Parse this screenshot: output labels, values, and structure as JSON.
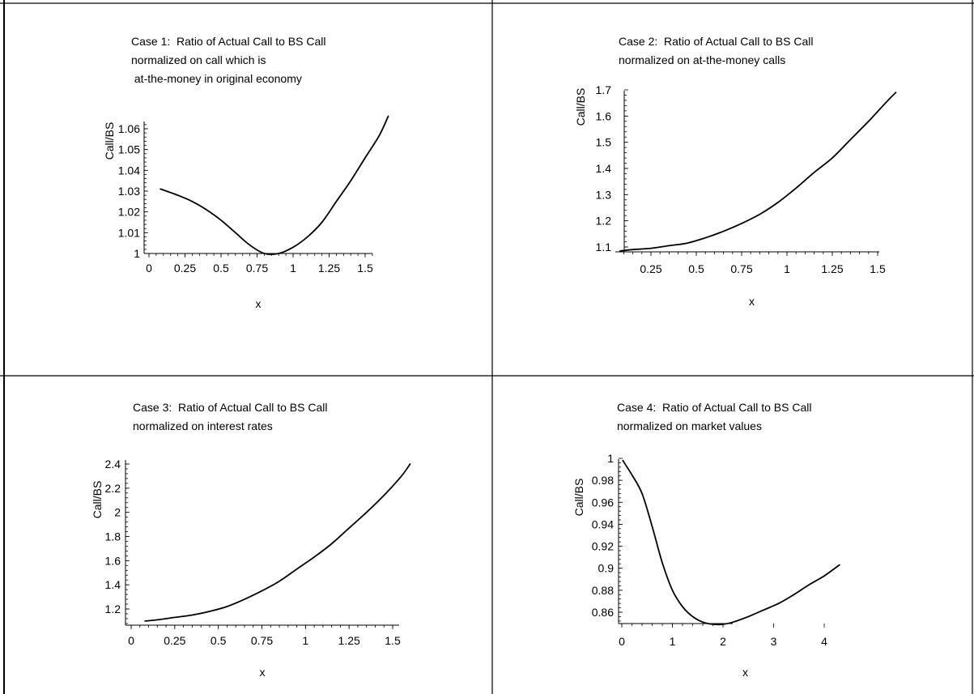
{
  "chart_data": [
    {
      "type": "line",
      "title_lines": [
        "Case 1:  Ratio of Actual Call to BS Call",
        "normalized on call which is",
        " at-the-money in original economy"
      ],
      "xlabel": "x",
      "ylabel": "Call/BS",
      "xlim": [
        0,
        1.72
      ],
      "ylim": [
        0.999,
        1.068
      ],
      "xticks": [
        0,
        0.25,
        0.5,
        0.75,
        1,
        1.25,
        1.5
      ],
      "xtick_labels": [
        "0",
        "0.25",
        "0.5",
        "0.75",
        "1",
        "1.25",
        "1.5"
      ],
      "yticks": [
        1,
        1.01,
        1.02,
        1.03,
        1.04,
        1.05,
        1.06
      ],
      "ytick_labels": [
        "1",
        "1.01",
        "1.02",
        "1.03",
        "1.04",
        "1.05",
        "1.06"
      ],
      "series": [
        {
          "x": [
            0.08,
            0.2,
            0.3,
            0.4,
            0.5,
            0.6,
            0.7,
            0.8,
            0.9,
            1.0,
            1.1,
            1.2,
            1.3,
            1.4,
            1.5,
            1.6,
            1.66
          ],
          "y": [
            1.031,
            1.028,
            1.025,
            1.021,
            1.016,
            1.01,
            1.004,
            1.0,
            1.0,
            1.003,
            1.008,
            1.015,
            1.025,
            1.035,
            1.046,
            1.057,
            1.066
          ]
        }
      ]
    },
    {
      "type": "line",
      "title_lines": [
        "Case 2:  Ratio of Actual Call to BS Call",
        "normalized on at-the-money calls"
      ],
      "xlabel": "x",
      "ylabel": "Call/BS",
      "xlim": [
        0,
        1.66
      ],
      "ylim": [
        1.075,
        1.72
      ],
      "xticks": [
        0.25,
        0.5,
        0.75,
        1,
        1.25,
        1.5
      ],
      "xtick_labels": [
        "0.25",
        "0.5",
        "0.75",
        "1",
        "1.25",
        "1.5"
      ],
      "yticks": [
        1.1,
        1.2,
        1.3,
        1.4,
        1.5,
        1.6,
        1.7
      ],
      "ytick_labels": [
        "1.1",
        "1.2",
        "1.3",
        "1.4",
        "1.5",
        "1.6",
        "1.7"
      ],
      "series": [
        {
          "x": [
            0.08,
            0.15,
            0.25,
            0.35,
            0.45,
            0.55,
            0.65,
            0.75,
            0.85,
            0.95,
            1.05,
            1.15,
            1.25,
            1.35,
            1.45,
            1.55,
            1.6
          ],
          "y": [
            1.085,
            1.09,
            1.095,
            1.105,
            1.115,
            1.135,
            1.16,
            1.19,
            1.225,
            1.27,
            1.325,
            1.385,
            1.44,
            1.51,
            1.58,
            1.655,
            1.69
          ]
        }
      ]
    },
    {
      "type": "line",
      "title_lines": [
        "Case 3:  Ratio of Actual Call to BS Call",
        "normalized on interest rates"
      ],
      "xlabel": "x",
      "ylabel": "Call/BS",
      "xlim": [
        0,
        1.68
      ],
      "ylim": [
        1.07,
        2.45
      ],
      "xticks": [
        0,
        0.25,
        0.5,
        0.75,
        1,
        1.25,
        1.5
      ],
      "xtick_labels": [
        "0",
        "0.25",
        "0.5",
        "0.75",
        "1",
        "1.25",
        "1.5"
      ],
      "yticks": [
        1.2,
        1.4,
        1.6,
        1.8,
        2,
        2.2,
        2.4
      ],
      "ytick_labels": [
        "1.2",
        "1.4",
        "1.6",
        "1.8",
        "2",
        "2.2",
        "2.4"
      ],
      "series": [
        {
          "x": [
            0.08,
            0.15,
            0.25,
            0.35,
            0.45,
            0.55,
            0.65,
            0.75,
            0.85,
            0.95,
            1.05,
            1.15,
            1.25,
            1.35,
            1.45,
            1.55,
            1.6
          ],
          "y": [
            1.1,
            1.11,
            1.13,
            1.15,
            1.18,
            1.22,
            1.28,
            1.35,
            1.43,
            1.53,
            1.63,
            1.74,
            1.87,
            2.0,
            2.14,
            2.3,
            2.4
          ]
        }
      ]
    },
    {
      "type": "line",
      "title_lines": [
        "Case 4:  Ratio of Actual Call to BS Call",
        "normalized on market values"
      ],
      "xlabel": "x",
      "ylabel": "Call/BS",
      "xlim": [
        0,
        4.5
      ],
      "ylim": [
        0.845,
        1.002
      ],
      "xticks": [
        0,
        1,
        2,
        3,
        4
      ],
      "xtick_labels": [
        "0",
        "1",
        "2",
        "3",
        "4"
      ],
      "yticks": [
        0.86,
        0.88,
        0.9,
        0.92,
        0.94,
        0.96,
        0.98,
        1
      ],
      "ytick_labels": [
        "0.86",
        "0.88",
        "0.9",
        "0.92",
        "0.94",
        "0.96",
        "0.98",
        "1"
      ],
      "series": [
        {
          "x": [
            0.02,
            0.2,
            0.4,
            0.6,
            0.8,
            1.0,
            1.2,
            1.4,
            1.6,
            1.8,
            2.0,
            2.2,
            2.5,
            2.8,
            3.1,
            3.4,
            3.7,
            4.0,
            4.3
          ],
          "y": [
            0.998,
            0.985,
            0.968,
            0.938,
            0.905,
            0.88,
            0.865,
            0.856,
            0.851,
            0.849,
            0.849,
            0.851,
            0.856,
            0.862,
            0.868,
            0.876,
            0.885,
            0.893,
            0.903
          ]
        }
      ]
    }
  ]
}
